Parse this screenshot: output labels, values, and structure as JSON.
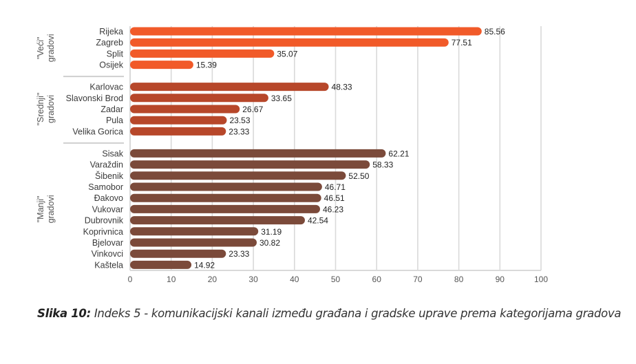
{
  "chart_data": {
    "type": "bar",
    "orientation": "horizontal",
    "title": "",
    "xlabel": "",
    "ylabel": "",
    "xlim": [
      0,
      100
    ],
    "x_ticks": [
      0,
      10,
      20,
      30,
      40,
      50,
      60,
      70,
      80,
      90,
      100
    ],
    "grid": "vertical",
    "value_format": "2 decimals",
    "groups": [
      {
        "name": "\"Veći\" gradovi",
        "label_line1": "\"Veći\"",
        "label_line2": "gradovi",
        "color": "#F15A29",
        "categories": [
          "Rijeka",
          "Zagreb",
          "Split",
          "Osijek"
        ],
        "values": [
          85.56,
          77.51,
          35.07,
          15.39
        ]
      },
      {
        "name": "\"Srednji\" gradovi",
        "label_line1": "\"Srednji\"",
        "label_line2": "gradovi",
        "color": "#B7472A",
        "categories": [
          "Karlovac",
          "Slavonski Brod",
          "Zadar",
          "Pula",
          "Velika Gorica"
        ],
        "values": [
          48.33,
          33.65,
          26.67,
          23.53,
          23.33
        ]
      },
      {
        "name": "\"Manji\" gradovi",
        "label_line1": "\"Manji\"",
        "label_line2": "gradovi",
        "color": "#7B4A3A",
        "categories": [
          "Sisak",
          "Varaždin",
          "Šibenik",
          "Samobor",
          "Đakovo",
          "Vukovar",
          "Dubrovnik",
          "Koprivnica",
          "Bjelovar",
          "Vinkovci",
          "Kaštela"
        ],
        "values": [
          62.21,
          58.33,
          52.5,
          46.71,
          46.51,
          46.23,
          42.54,
          31.19,
          30.82,
          23.33,
          14.92
        ]
      }
    ]
  },
  "caption": {
    "label": "Slika 10:",
    "text": " Indeks 5 - komunikacijski kanali između građana i gradske uprave prema kategorijama gradova"
  }
}
